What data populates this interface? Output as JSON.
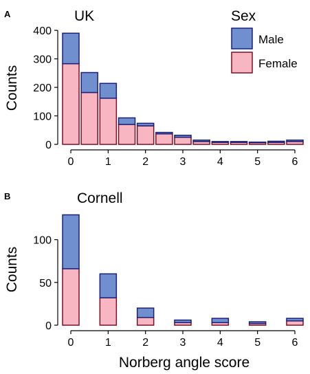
{
  "colors": {
    "male_fill": "#6f8fcf",
    "male_stroke": "#1c1f78",
    "female_fill": "#f7b6c2",
    "female_stroke": "#7a0f26"
  },
  "legend": {
    "title": "Sex",
    "entries": [
      "Male",
      "Female"
    ]
  },
  "shared_xlabel": "Norberg angle score",
  "chart_data": [
    {
      "type": "bar",
      "stacked": true,
      "panel_label": "A",
      "title": "UK",
      "ylabel": "Counts",
      "xlabel": "",
      "x": [
        0,
        0.5,
        1,
        1.5,
        2,
        2.5,
        3,
        3.5,
        4,
        4.5,
        5,
        5.5,
        6
      ],
      "xticks": [
        0,
        1,
        2,
        3,
        4,
        5,
        6
      ],
      "xlim": [
        -0.35,
        6.35
      ],
      "ylim": [
        0,
        410
      ],
      "yticks": [
        0,
        100,
        200,
        300,
        400
      ],
      "series": [
        {
          "name": "Female",
          "values": [
            283,
            182,
            162,
            70,
            65,
            37,
            25,
            10,
            7,
            7,
            6,
            7,
            10
          ]
        },
        {
          "name": "Male",
          "values": [
            107,
            70,
            52,
            23,
            9,
            5,
            7,
            5,
            3,
            3,
            2,
            4,
            5
          ]
        }
      ]
    },
    {
      "type": "bar",
      "stacked": true,
      "panel_label": "B",
      "title": "Cornell",
      "ylabel": "Counts",
      "xlabel": "Norberg angle score",
      "x": [
        0,
        1,
        2,
        3,
        4,
        5,
        6
      ],
      "xticks": [
        0,
        1,
        2,
        3,
        4,
        5,
        6
      ],
      "xlim": [
        -0.35,
        6.35
      ],
      "ylim": [
        0,
        135
      ],
      "yticks": [
        0,
        50,
        100
      ],
      "series": [
        {
          "name": "Female",
          "values": [
            66,
            32,
            9,
            3,
            3,
            2,
            5
          ]
        },
        {
          "name": "Male",
          "values": [
            63,
            28,
            11,
            3,
            5,
            2,
            3
          ]
        }
      ]
    }
  ]
}
